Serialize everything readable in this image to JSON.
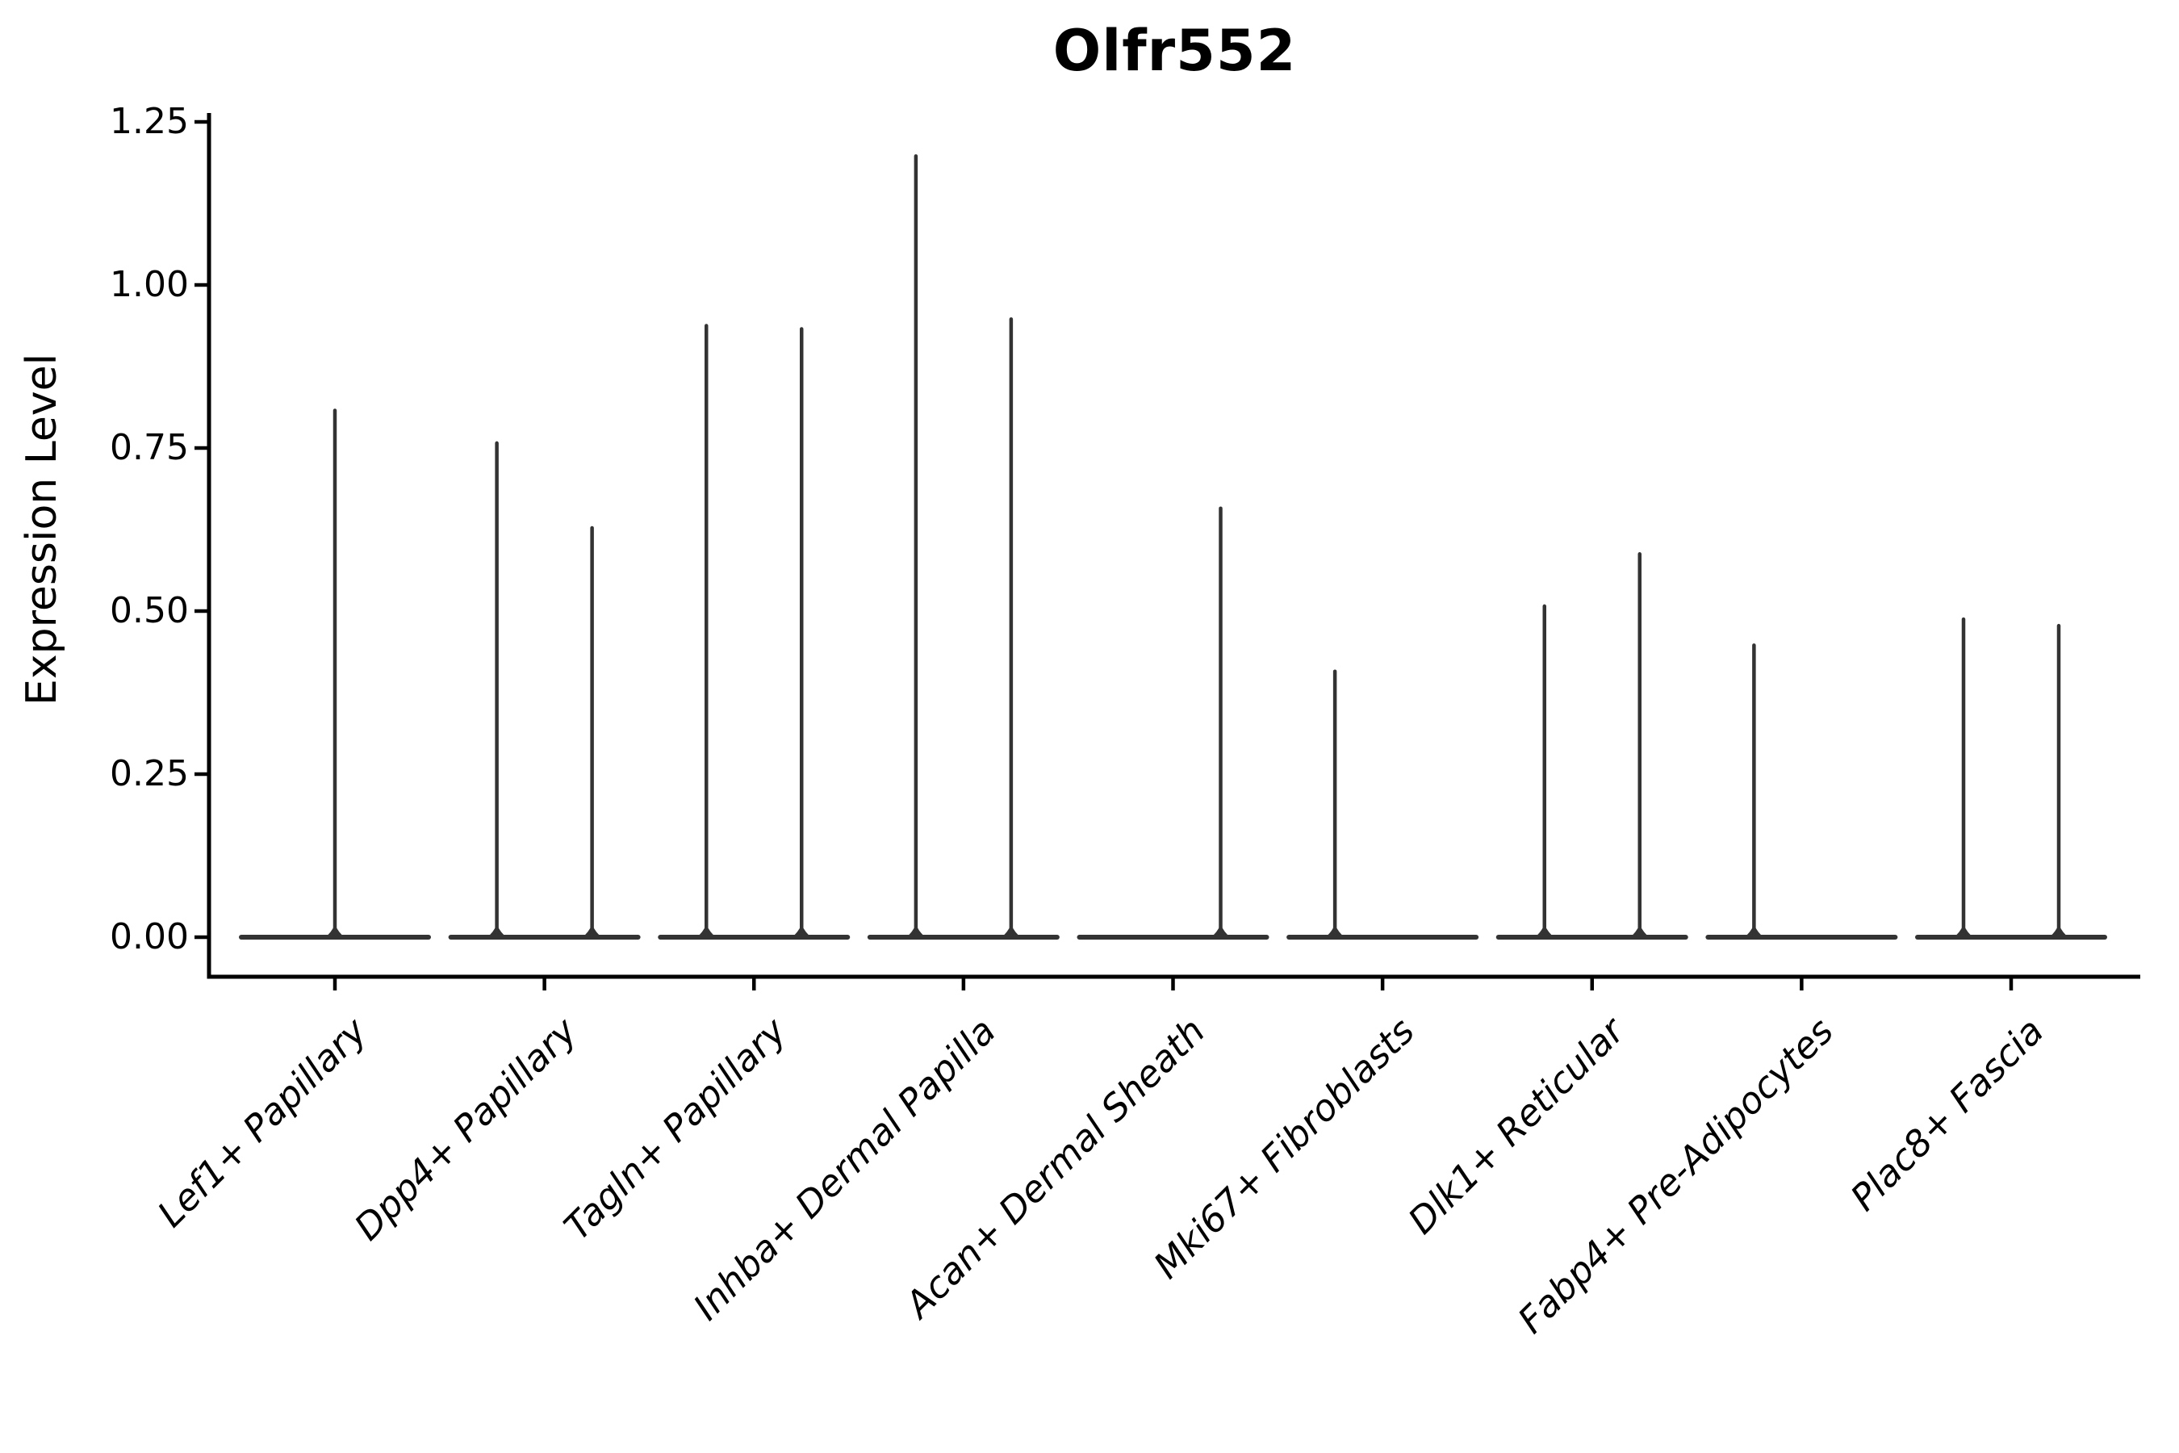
{
  "figure": {
    "title": "Olfr552",
    "background": "#ffffff"
  },
  "chart_data": {
    "type": "violin",
    "title": "Olfr552",
    "xlabel": "",
    "ylabel": "Expression Level",
    "ylim": [
      0.0,
      1.25
    ],
    "yticks": [
      {
        "value": 0.0,
        "label": "0.00"
      },
      {
        "value": 0.25,
        "label": "0.25"
      },
      {
        "value": 0.5,
        "label": "0.50"
      },
      {
        "value": 0.75,
        "label": "0.75"
      },
      {
        "value": 1.0,
        "label": "1.00"
      },
      {
        "value": 1.25,
        "label": "1.25"
      }
    ],
    "grid": false,
    "legend_position": "none",
    "baseline_value": 0.0,
    "categories": [
      {
        "label": "Lef1+ Papillary",
        "violins": [
          {
            "position": "center",
            "max": 0.81
          }
        ]
      },
      {
        "label": "Dpp4+ Papillary",
        "violins": [
          {
            "position": "left",
            "max": 0.76
          },
          {
            "position": "right",
            "max": 0.63
          }
        ]
      },
      {
        "label": "Tagln+ Papillary",
        "violins": [
          {
            "position": "left",
            "max": 0.94
          },
          {
            "position": "right",
            "max": 0.935
          }
        ]
      },
      {
        "label": "Inhba+ Dermal Papilla",
        "violins": [
          {
            "position": "left",
            "max": 1.2
          },
          {
            "position": "right",
            "max": 0.95
          }
        ]
      },
      {
        "label": "Acan+ Dermal Sheath",
        "violins": [
          {
            "position": "right",
            "max": 0.66
          }
        ]
      },
      {
        "label": "Mki67+ Fibroblasts",
        "violins": [
          {
            "position": "left",
            "max": 0.41
          }
        ]
      },
      {
        "label": "Dlk1+ Reticular",
        "violins": [
          {
            "position": "left",
            "max": 0.51
          },
          {
            "position": "right",
            "max": 0.59
          }
        ]
      },
      {
        "label": "Fabp4+ Pre-Adipocytes",
        "violins": [
          {
            "position": "left",
            "max": 0.45
          }
        ]
      },
      {
        "label": "Plac8+ Fascia",
        "violins": [
          {
            "position": "left",
            "max": 0.49
          },
          {
            "position": "right",
            "max": 0.48
          }
        ]
      }
    ]
  },
  "colors": {
    "violin": "#333333",
    "axis": "#000000",
    "text": "#000000",
    "background": "#ffffff"
  }
}
